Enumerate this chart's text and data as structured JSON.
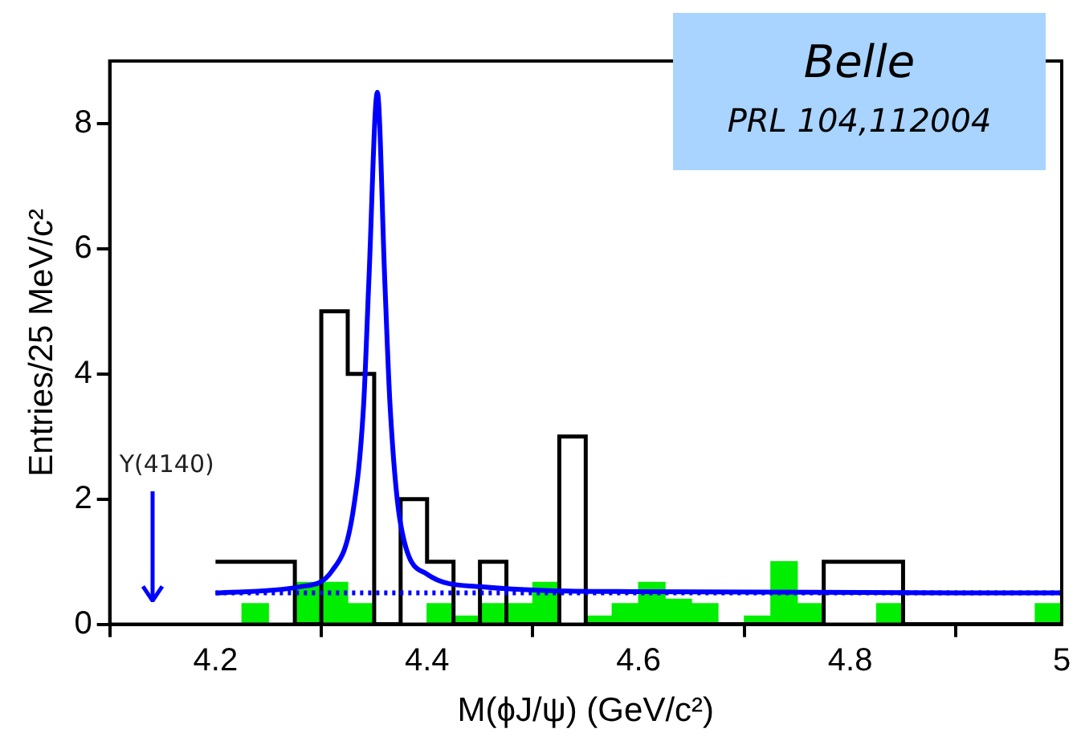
{
  "chart_data": {
    "type": "histogram",
    "xlabel": "M(ϕJ/ψ) (GeV/c²)",
    "ylabel": "Entries/25 MeV/c²",
    "bins": [
      4.2,
      4.225,
      4.25,
      4.275,
      4.3,
      4.325,
      4.35,
      4.375,
      4.4,
      4.425,
      4.45,
      4.475,
      4.5,
      4.525,
      4.55,
      4.575,
      4.6,
      4.625,
      4.65,
      4.675,
      4.7,
      4.725,
      4.75,
      4.775,
      4.8,
      4.825,
      4.85,
      4.875,
      4.9,
      4.925,
      4.95,
      4.975,
      5
    ],
    "color": "#00ee00",
    "values": [
      0,
      0.33,
      0,
      0.67,
      0.67,
      0.33,
      0,
      0,
      0.33,
      0.13,
      0.33,
      0.33,
      0.67,
      0,
      0.13,
      0.33,
      0.67,
      0.4,
      0.33,
      0,
      0.13,
      1,
      0.33,
      0,
      0,
      0.33,
      0,
      0,
      0,
      0,
      0,
      0.33
    ],
    "series": [
      {
        "type": "step",
        "color": "#000000",
        "x": [
          4.2,
          4.225,
          4.25,
          4.275,
          4.3,
          4.325,
          4.35,
          4.375,
          4.4,
          4.425,
          4.45,
          4.475,
          4.5,
          4.525,
          4.55,
          4.575,
          4.6,
          4.625,
          4.65,
          4.675,
          4.7,
          4.725,
          4.75,
          4.775,
          4.8,
          4.825,
          4.85,
          4.875,
          4.9,
          4.925,
          4.95,
          4.975,
          5
        ],
        "values": [
          1,
          1,
          1,
          1,
          0,
          5,
          4,
          0,
          2,
          1,
          0,
          1,
          0,
          0,
          3,
          0,
          0,
          0,
          0,
          0,
          0,
          0,
          0,
          0,
          1,
          1,
          1,
          0,
          0,
          0,
          0,
          0,
          0
        ]
      },
      {
        "type": "line",
        "color": "#0000ff",
        "line_style": "dotted",
        "x": [
          4.2,
          5
        ],
        "values": [
          0.5,
          0.5
        ]
      },
      {
        "type": "line",
        "color": "#0000ff",
        "line_style": "solid",
        "x": [
          4.2,
          4.28,
          4.31,
          4.33,
          4.34,
          4.345,
          4.353,
          4.36,
          4.365,
          4.375,
          4.4,
          4.45,
          4.6,
          5
        ],
        "values": [
          0.5,
          0.6,
          0.85,
          1.8,
          3.5,
          5.5,
          8.5,
          5.5,
          3.5,
          1.6,
          0.8,
          0.6,
          0.52,
          0.5
        ]
      }
    ],
    "xlim": [
      4.1,
      5
    ],
    "xticks": [
      4.2,
      4.4,
      4.6,
      4.8,
      5
    ],
    "ylim": [
      0,
      9
    ],
    "yticks": [
      0,
      2,
      4,
      6,
      8
    ],
    "grid": false,
    "legend": false,
    "marker": "none",
    "annotations": [
      "Y(4140)",
      "Belle",
      "PRL 104,112004"
    ]
  }
}
